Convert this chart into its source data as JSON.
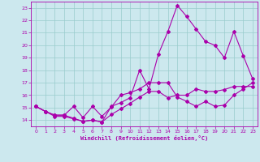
{
  "xlabel": "Windchill (Refroidissement éolien,°C)",
  "bg_color": "#cce8ee",
  "line_color": "#aa00aa",
  "grid_color": "#99cccc",
  "xlim": [
    -0.5,
    23.5
  ],
  "ylim": [
    13.5,
    23.5
  ],
  "yticks": [
    14,
    15,
    16,
    17,
    18,
    19,
    20,
    21,
    22,
    23
  ],
  "xticks": [
    0,
    1,
    2,
    3,
    4,
    5,
    6,
    7,
    8,
    9,
    10,
    11,
    12,
    13,
    14,
    15,
    16,
    17,
    18,
    19,
    20,
    21,
    22,
    23
  ],
  "line1_x": [
    0,
    1,
    2,
    3,
    4,
    5,
    6,
    7,
    8,
    9,
    10,
    11,
    12,
    13,
    14,
    15,
    16,
    17,
    18,
    19,
    20,
    21,
    22,
    23
  ],
  "line1_y": [
    15.1,
    14.7,
    14.3,
    14.3,
    14.1,
    13.9,
    14.0,
    13.85,
    14.45,
    14.9,
    15.35,
    15.85,
    16.3,
    16.3,
    15.8,
    16.0,
    16.0,
    16.5,
    16.3,
    16.3,
    16.45,
    16.7,
    16.7,
    16.7
  ],
  "line2_x": [
    0,
    1,
    2,
    3,
    4,
    5,
    6,
    7,
    8,
    9,
    10,
    11,
    12,
    13,
    14,
    15,
    16,
    17,
    18,
    19,
    20,
    21,
    22,
    23
  ],
  "line2_y": [
    15.1,
    14.7,
    14.4,
    14.4,
    15.1,
    14.2,
    15.1,
    14.3,
    15.05,
    16.0,
    16.2,
    16.5,
    17.0,
    17.0,
    17.0,
    15.85,
    15.5,
    15.1,
    15.5,
    15.1,
    15.2,
    16.0,
    16.5,
    17.0
  ],
  "line3_x": [
    0,
    1,
    2,
    3,
    4,
    5,
    6,
    7,
    8,
    9,
    10,
    11,
    12,
    13,
    14,
    15,
    16,
    17,
    18,
    19,
    20,
    21,
    22,
    23
  ],
  "line3_y": [
    15.1,
    14.7,
    14.4,
    14.4,
    14.15,
    13.9,
    14.0,
    13.85,
    15.1,
    15.4,
    15.8,
    18.0,
    16.5,
    19.3,
    21.1,
    23.2,
    22.3,
    21.3,
    20.3,
    20.0,
    19.0,
    21.1,
    19.15,
    17.3
  ]
}
